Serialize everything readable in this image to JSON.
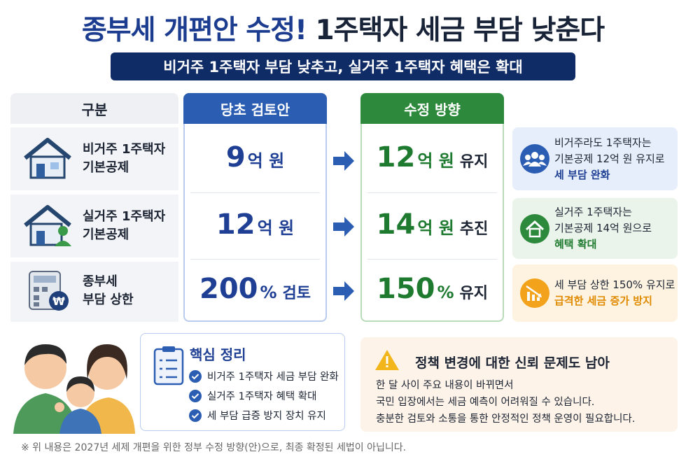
{
  "title": {
    "main": "종부세 개편안 수정!",
    "sub": "1주택자 세금 부담 낮춘다"
  },
  "subtitle": "비거주 1주택자 부담 낮추고, 실거주 1주택자 혜택은 확대",
  "table": {
    "headers": [
      "구분",
      "당초 검토안",
      "수정 방향"
    ],
    "rows": [
      {
        "label": [
          "비거주 1주택자",
          "기본공제"
        ],
        "original": {
          "value": "9",
          "unit": "억 원"
        },
        "revised": {
          "value": "12",
          "unit": "억 원",
          "action": "유지"
        }
      },
      {
        "label": [
          "실거주 1주택자",
          "기본공제"
        ],
        "original": {
          "value": "12",
          "unit": "억 원"
        },
        "revised": {
          "value": "14",
          "unit": "억 원",
          "action": "추진"
        }
      },
      {
        "label": [
          "종부세",
          "부담 상한"
        ],
        "original": {
          "value": "200",
          "unit": "%",
          "action": "검토"
        },
        "revised": {
          "value": "150",
          "unit": "%",
          "action": "유지"
        }
      }
    ]
  },
  "notes": [
    {
      "lines": [
        "비거주라도 1주택자는",
        "기본공제 12억 원 유지로"
      ],
      "highlight": "세 부담 완화"
    },
    {
      "lines": [
        "실거주 1주택자는",
        "기본공제 14억 원으로"
      ],
      "highlight": "혜택 확대"
    },
    {
      "lines": [
        "세 부담 상한 150% 유지로"
      ],
      "highlight": "급격한 세금 증가 방지"
    }
  ],
  "summary": {
    "title": "핵심 정리",
    "items": [
      "비거주 1주택자 세금 부담 완화",
      "실거주 1주택자 혜택 확대",
      "세 부담 급증 방지 장치 유지"
    ]
  },
  "warning": {
    "title": "정책 변경에 대한 신뢰 문제도 남아",
    "body": [
      "한 달 사이 주요 내용이 바뀌면서",
      "국민 입장에서는 세금 예측이 어려워질 수 있습니다.",
      "충분한 검토와 소통을 통한 안정적인 정책 운영이 필요합니다."
    ]
  },
  "footnote": "※ 위 내용은 2027년 세제 개편을 위한 정부 수정 방향(안)으로, 최종 확정된 세법이 아닙니다."
}
